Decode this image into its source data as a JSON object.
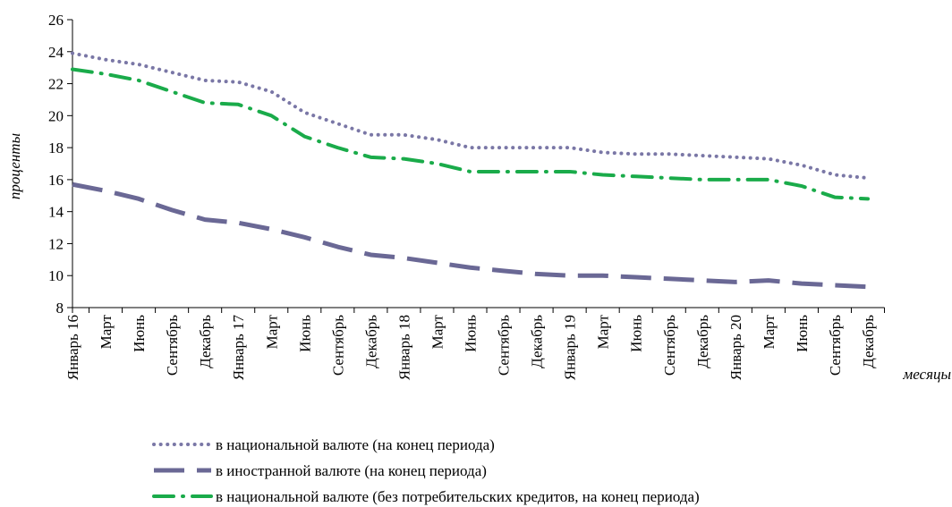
{
  "chart_data": {
    "type": "line",
    "title": "",
    "xlabel": "месяцы",
    "ylabel": "проценты",
    "ylim": [
      8,
      26
    ],
    "yticks": [
      8,
      10,
      12,
      14,
      16,
      18,
      20,
      22,
      24,
      26
    ],
    "grid": false,
    "legend_position": "bottom",
    "categories": [
      "Январь 16",
      "Март",
      "Июнь",
      "Сентябрь",
      "Декабрь",
      "Январь 17",
      "Март",
      "Июнь",
      "Сентябрь",
      "Декабрь",
      "Январь 18",
      "Март",
      "Июнь",
      "Сентябрь",
      "Декабрь",
      "Январь 19",
      "Март",
      "Июнь",
      "Сентябрь",
      "Декабрь",
      "Январь 20",
      "Март",
      "Июнь",
      "Сентябрь",
      "Декабрь"
    ],
    "series": [
      {
        "name": "в национальной валюте (на конец периода)",
        "color": "#7a77a6",
        "style": "dotted",
        "values": [
          23.9,
          23.5,
          23.2,
          22.7,
          22.2,
          22.1,
          21.5,
          20.2,
          19.5,
          18.8,
          18.8,
          18.5,
          18.0,
          18.0,
          18.0,
          18.0,
          17.7,
          17.6,
          17.6,
          17.5,
          17.4,
          17.3,
          16.9,
          16.3,
          16.1
        ]
      },
      {
        "name": "в иностранной валюте (на конец периода)",
        "color": "#6a6895",
        "style": "dashed",
        "values": [
          15.7,
          15.3,
          14.8,
          14.1,
          13.5,
          13.3,
          12.9,
          12.4,
          11.8,
          11.3,
          11.1,
          10.8,
          10.5,
          10.3,
          10.1,
          10.0,
          10.0,
          9.9,
          9.8,
          9.7,
          9.6,
          9.7,
          9.5,
          9.4,
          9.3
        ]
      },
      {
        "name": "в национальной валюте (без потребительских кредитов, на конец периода)",
        "color": "#1aab4a",
        "style": "dashdot",
        "values": [
          22.9,
          22.6,
          22.2,
          21.5,
          20.8,
          20.7,
          20.0,
          18.7,
          18.0,
          17.4,
          17.3,
          17.0,
          16.5,
          16.5,
          16.5,
          16.5,
          16.3,
          16.2,
          16.1,
          16.0,
          16.0,
          16.0,
          15.6,
          14.9,
          14.8
        ]
      }
    ]
  }
}
